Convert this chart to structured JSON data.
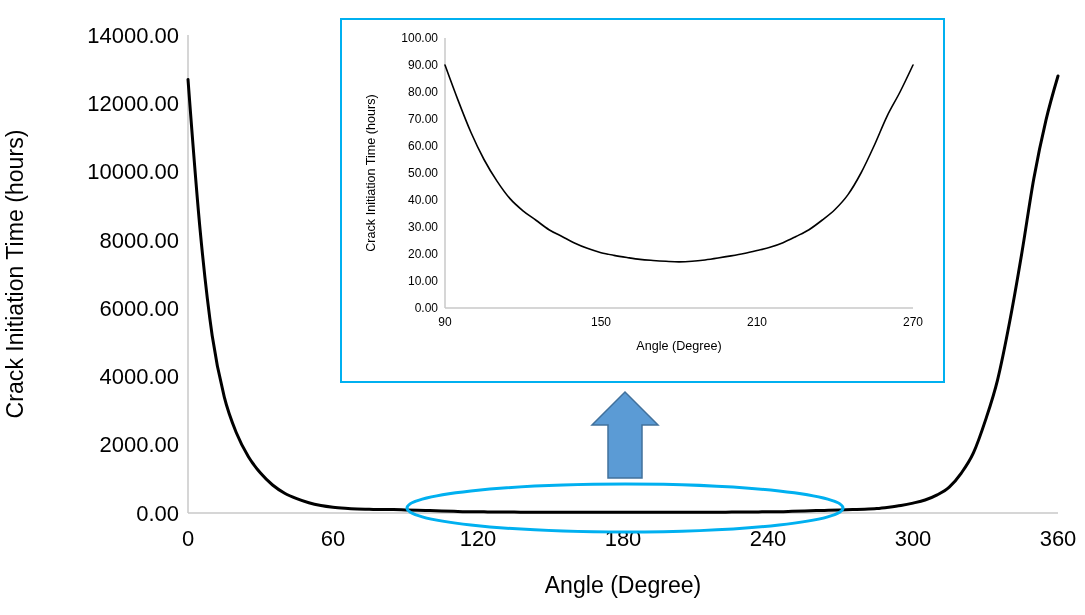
{
  "chart_data": [
    {
      "type": "line",
      "xlabel": "Angle (Degree)",
      "ylabel": "Crack Initiation Time (hours)",
      "xlim": [
        0,
        360
      ],
      "xticks": [
        0,
        60,
        120,
        180,
        240,
        300,
        360
      ],
      "ylim": [
        0,
        14000
      ],
      "yticks": [
        {
          "value": 0,
          "label": "0.00"
        },
        {
          "value": 2000,
          "label": "2000.00"
        },
        {
          "value": 4000,
          "label": "4000.00"
        },
        {
          "value": 6000,
          "label": "6000.00"
        },
        {
          "value": 8000,
          "label": "8000.00"
        },
        {
          "value": 10000,
          "label": "10000.00"
        },
        {
          "value": 12000,
          "label": "12000.00"
        },
        {
          "value": 14000,
          "label": "14000.00"
        }
      ],
      "grid": false,
      "series": [
        {
          "color": "#000000",
          "x": [
            0,
            5,
            10,
            15,
            20,
            25,
            30,
            35,
            40,
            45,
            50,
            55,
            60,
            65,
            70,
            75,
            80,
            85,
            90,
            95,
            100,
            105,
            110,
            115,
            120,
            125,
            130,
            135,
            140,
            145,
            150,
            155,
            160,
            165,
            170,
            175,
            180,
            185,
            190,
            195,
            200,
            205,
            210,
            215,
            220,
            225,
            230,
            235,
            240,
            245,
            250,
            255,
            260,
            265,
            270,
            275,
            280,
            285,
            290,
            295,
            300,
            305,
            310,
            315,
            320,
            325,
            330,
            335,
            340,
            345,
            350,
            355,
            360
          ],
          "values": [
            12700,
            8300,
            5200,
            3400,
            2350,
            1650,
            1170,
            820,
            580,
            420,
            300,
            220,
            170,
            140,
            120,
            110,
            100,
            100,
            90,
            80,
            70,
            60,
            50,
            40,
            40,
            30,
            30,
            30,
            20,
            20,
            20,
            20,
            20,
            20,
            20,
            20,
            20,
            20,
            20,
            20,
            20,
            20,
            20,
            20,
            20,
            30,
            30,
            30,
            40,
            40,
            50,
            60,
            70,
            80,
            90,
            100,
            110,
            130,
            170,
            220,
            290,
            380,
            530,
            760,
            1170,
            1760,
            2720,
            3900,
            5600,
            7600,
            9800,
            11500,
            12800
          ]
        }
      ]
    },
    {
      "type": "line",
      "xlabel": "Angle (Degree)",
      "ylabel": "Crack Initiation Time (hours)",
      "xlim": [
        90,
        270
      ],
      "xticks": [
        90,
        150,
        210,
        270
      ],
      "ylim": [
        0,
        100
      ],
      "yticks": [
        {
          "value": 0,
          "label": "0.00"
        },
        {
          "value": 10,
          "label": "10.00"
        },
        {
          "value": 20,
          "label": "20.00"
        },
        {
          "value": 30,
          "label": "30.00"
        },
        {
          "value": 40,
          "label": "40.00"
        },
        {
          "value": 50,
          "label": "50.00"
        },
        {
          "value": 60,
          "label": "60.00"
        },
        {
          "value": 70,
          "label": "70.00"
        },
        {
          "value": 80,
          "label": "80.00"
        },
        {
          "value": 90,
          "label": "90.00"
        },
        {
          "value": 100,
          "label": "100.00"
        }
      ],
      "grid": false,
      "series": [
        {
          "color": "#000000",
          "x": [
            90,
            95,
            100,
            105,
            110,
            115,
            120,
            125,
            130,
            135,
            140,
            145,
            150,
            155,
            160,
            165,
            170,
            175,
            180,
            185,
            190,
            195,
            200,
            205,
            210,
            215,
            220,
            225,
            230,
            235,
            240,
            245,
            250,
            255,
            260,
            265,
            270
          ],
          "values": [
            90,
            77,
            65,
            55,
            47,
            40.5,
            36,
            32.5,
            29,
            26.5,
            24,
            22,
            20.5,
            19.5,
            18.7,
            18,
            17.6,
            17.3,
            17.1,
            17.3,
            17.8,
            18.5,
            19.3,
            20.2,
            21.3,
            22.5,
            24.2,
            26.5,
            29,
            32.5,
            36.5,
            42,
            50,
            60,
            71,
            80,
            90
          ]
        }
      ]
    }
  ]
}
